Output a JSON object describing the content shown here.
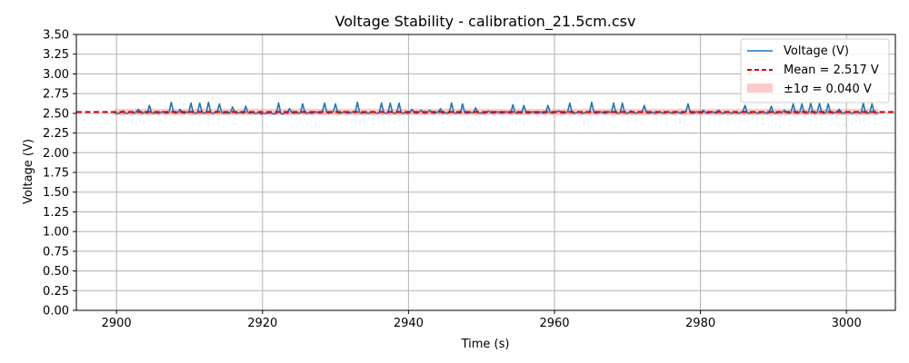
{
  "chart_data": {
    "type": "line",
    "title": "Voltage Stability - calibration_21.5cm.csv",
    "xlabel": "Time (s)",
    "ylabel": "Voltage (V)",
    "xlim": [
      2894.5,
      3006.7
    ],
    "ylim": [
      0.0,
      3.5
    ],
    "xticks": [
      2900,
      2920,
      2940,
      2960,
      2980,
      3000
    ],
    "xtick_labels": [
      "2900",
      "2920",
      "2940",
      "2960",
      "2980",
      "3000"
    ],
    "yticks": [
      0,
      0.25,
      0.5,
      0.75,
      1.0,
      1.25,
      1.5,
      1.75,
      2.0,
      2.25,
      2.5,
      2.75,
      3.0,
      3.25,
      3.5
    ],
    "ytick_labels": [
      "0.00",
      "0.25",
      "0.50",
      "0.75",
      "1.00",
      "1.25",
      "1.50",
      "1.75",
      "2.00",
      "2.25",
      "2.50",
      "2.75",
      "3.00",
      "3.25",
      "3.50"
    ],
    "grid": true,
    "legend_position": "top-right",
    "mean": 2.517,
    "std": 0.04,
    "series": [
      {
        "name": "Voltage (V)",
        "color": "#1f77b4",
        "x_start": 2899.7,
        "x_step": 0.3,
        "values": [
          2.51,
          2.5,
          2.5,
          2.51,
          2.53,
          2.5,
          2.5,
          2.52,
          2.51,
          2.5,
          2.52,
          2.55,
          2.51,
          2.5,
          2.52,
          2.5,
          2.6,
          2.51,
          2.5,
          2.51,
          2.5,
          2.51,
          2.52,
          2.51,
          2.5,
          2.51,
          2.64,
          2.52,
          2.5,
          2.51,
          2.55,
          2.51,
          2.5,
          2.52,
          2.51,
          2.63,
          2.51,
          2.5,
          2.51,
          2.63,
          2.52,
          2.5,
          2.51,
          2.64,
          2.51,
          2.5,
          2.51,
          2.52,
          2.62,
          2.51,
          2.5,
          2.51,
          2.5,
          2.51,
          2.58,
          2.51,
          2.5,
          2.51,
          2.51,
          2.5,
          2.59,
          2.51,
          2.5,
          2.51,
          2.5,
          2.5,
          2.51,
          2.49,
          2.5,
          2.5,
          2.5,
          2.51,
          2.5,
          2.49,
          2.5,
          2.63,
          2.5,
          2.49,
          2.51,
          2.5,
          2.56,
          2.51,
          2.5,
          2.51,
          2.5,
          2.51,
          2.62,
          2.51,
          2.5,
          2.51,
          2.5,
          2.51,
          2.52,
          2.51,
          2.5,
          2.52,
          2.63,
          2.51,
          2.5,
          2.51,
          2.52,
          2.62,
          2.51,
          2.5,
          2.51,
          2.52,
          2.51,
          2.5,
          2.51,
          2.52,
          2.51,
          2.64,
          2.51,
          2.5,
          2.51,
          2.51,
          2.5,
          2.51,
          2.52,
          2.51,
          2.5,
          2.51,
          2.63,
          2.51,
          2.5,
          2.51,
          2.63,
          2.51,
          2.5,
          2.51,
          2.63,
          2.51,
          2.5,
          2.51,
          2.5,
          2.51,
          2.55,
          2.51,
          2.5,
          2.51,
          2.54,
          2.51,
          2.5,
          2.51,
          2.54,
          2.51,
          2.5,
          2.51,
          2.52,
          2.56,
          2.5,
          2.51,
          2.5,
          2.51,
          2.63,
          2.51,
          2.5,
          2.51,
          2.5,
          2.62,
          2.51,
          2.5,
          2.51,
          2.51,
          2.51,
          2.57,
          2.51,
          2.5,
          2.51,
          2.5,
          2.51,
          2.53,
          2.51,
          2.5,
          2.51,
          2.52,
          2.51,
          2.5,
          2.51,
          2.52,
          2.51,
          2.5,
          2.61,
          2.51,
          2.5,
          2.51,
          2.5,
          2.6,
          2.51,
          2.5,
          2.51,
          2.52,
          2.51,
          2.5,
          2.51,
          2.52,
          2.5,
          2.51,
          2.6,
          2.51,
          2.5,
          2.51,
          2.52,
          2.53,
          2.51,
          2.5,
          2.51,
          2.52,
          2.63,
          2.51,
          2.5,
          2.51,
          2.52,
          2.51,
          2.5,
          2.51,
          2.52,
          2.51,
          2.64,
          2.51,
          2.5,
          2.51,
          2.52,
          2.51,
          2.5,
          2.51,
          2.52,
          2.51,
          2.63,
          2.51,
          2.5,
          2.51,
          2.63,
          2.51,
          2.5,
          2.51,
          2.53,
          2.51,
          2.5,
          2.51,
          2.52,
          2.51,
          2.6,
          2.51,
          2.5,
          2.51,
          2.51,
          2.5,
          2.51,
          2.52,
          2.51,
          2.5,
          2.51,
          2.52,
          2.51,
          2.5,
          2.51,
          2.52,
          2.51,
          2.5,
          2.51,
          2.52,
          2.62,
          2.51,
          2.5,
          2.51,
          2.52,
          2.51,
          2.5,
          2.54,
          2.51,
          2.5,
          2.51,
          2.52,
          2.51,
          2.5,
          2.54,
          2.51,
          2.5,
          2.51,
          2.52,
          2.51,
          2.5,
          2.52,
          2.51,
          2.5,
          2.51,
          2.52,
          2.6,
          2.51,
          2.5,
          2.51,
          2.52,
          2.51,
          2.5,
          2.51,
          2.52,
          2.51,
          2.5,
          2.51,
          2.59,
          2.51,
          2.5,
          2.51,
          2.52,
          2.51,
          2.54,
          2.51,
          2.5,
          2.51,
          2.62,
          2.51,
          2.5,
          2.51,
          2.62,
          2.51,
          2.5,
          2.51,
          2.63,
          2.51,
          2.5,
          2.51,
          2.63,
          2.51,
          2.5,
          2.51,
          2.62,
          2.51,
          2.5,
          2.51,
          2.52,
          2.55,
          2.51,
          2.5,
          2.51,
          2.52,
          2.51,
          2.5,
          2.51,
          2.52,
          2.51,
          2.5,
          2.63,
          2.51,
          2.5,
          2.51,
          2.62,
          2.51,
          2.5,
          2.51
        ]
      }
    ],
    "mean_line": {
      "name": "Mean = 2.517 V",
      "color": "#e00000"
    },
    "band": {
      "name": "±1σ = 0.040 V",
      "color": "#ff9c9c"
    }
  }
}
